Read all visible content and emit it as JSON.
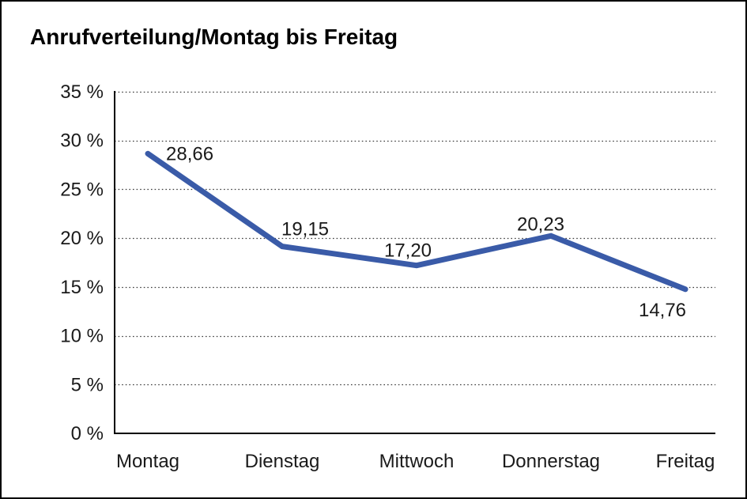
{
  "page": {
    "title": "Anrufverteilung/Montag bis Freitag"
  },
  "chart_data": {
    "type": "line",
    "title": "Anrufverteilung/Montag bis Freitag",
    "categories": [
      "Montag",
      "Dienstag",
      "Mittwoch",
      "Donnerstag",
      "Freitag"
    ],
    "values": [
      28.66,
      19.15,
      17.2,
      20.23,
      14.76
    ],
    "point_labels": [
      "28,66",
      "19,15",
      "17,20",
      "20,23",
      "14,76"
    ],
    "xlabel": "",
    "ylabel": "",
    "ylim": [
      0,
      35
    ],
    "y_tick_step": 5,
    "y_tick_labels": [
      "0 %",
      "5 %",
      "10 %",
      "15 %",
      "20 %",
      "25 %",
      "30 %",
      "35 %"
    ],
    "grid": "horizontal-dotted",
    "legend": "none",
    "colors": {
      "line": "#3A5BA8",
      "axis": "#000000",
      "grid_dots": "#3C3C3C",
      "text": "#1A1A1A",
      "background": "#FFFFFF",
      "frame_border": "#000000"
    }
  }
}
